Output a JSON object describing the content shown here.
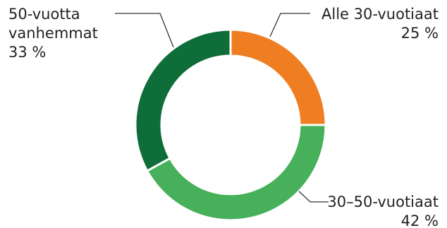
{
  "chart_data": {
    "type": "pie",
    "variant": "donut",
    "title": "",
    "segments": [
      {
        "label": "Alle 30-vuotiaat",
        "value": 25,
        "value_label": "25 %",
        "color": "#ef7d22"
      },
      {
        "label": "30–50-vuotiaat",
        "value": 42,
        "value_label": "42 %",
        "color": "#46b05a"
      },
      {
        "label": "50-vuotta vanhemmat",
        "value": 33,
        "value_label": "33 %",
        "color": "#0e6d39"
      }
    ],
    "label_lines": {
      "seg0": [
        "Alle 30-vuotiaat",
        "25 %"
      ],
      "seg1": [
        "30–50-vuotiaat",
        "42 %"
      ],
      "seg2": [
        "50-vuotta",
        "vanhemmat",
        "33 %"
      ]
    },
    "leader_line_color": "#333333",
    "legend": "none"
  }
}
